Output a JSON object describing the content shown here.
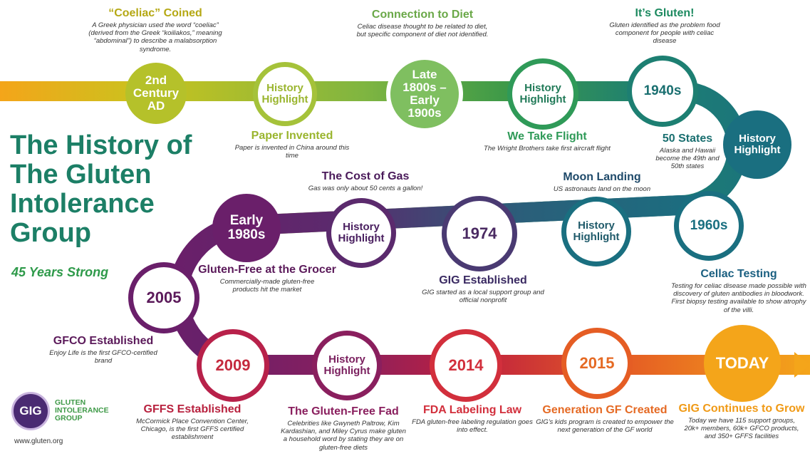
{
  "header": {
    "title": "The History of The Gluten Intolerance Group",
    "subtitle": "45 Years Strong"
  },
  "logo": {
    "monogram": "GIG",
    "text": "GLUTEN INTOLERANCE GROUP"
  },
  "website": "www.gluten.org",
  "colors": {
    "green_title": "#1c7f66",
    "orange": "#f4a51a",
    "lime": "#a5c23a",
    "green": "#3f9a48",
    "teal": "#1a6f80",
    "purple": "#5b2a6d",
    "magenta": "#7a1f6e",
    "red": "#d22f3c",
    "orange_red": "#e55d24"
  },
  "nodes": [
    {
      "label": "2nd Century AD"
    },
    {
      "label": "History Highlight"
    },
    {
      "label": "Late 1800s – Early 1900s"
    },
    {
      "label": "History Highlight"
    },
    {
      "label": "1940s"
    },
    {
      "label": "History Highlight"
    },
    {
      "label": "1960s"
    },
    {
      "label": "History Highlight"
    },
    {
      "label": "1974"
    },
    {
      "label": "History Highlight"
    },
    {
      "label": "Early 1980s"
    },
    {
      "label": "2005"
    },
    {
      "label": "2009"
    },
    {
      "label": "History Highlight"
    },
    {
      "label": "2014"
    },
    {
      "label": "2015"
    },
    {
      "label": "TODAY"
    }
  ],
  "events": [
    {
      "title": "“Coeliac” Coined",
      "desc": "A Greek physician used the word “coeliac” (derived from the Greek “koiliakos,” meaning “abdominal”) to describe a malabsorption syndrome."
    },
    {
      "title": "Paper Invented",
      "desc": "Paper is invented in China around this time"
    },
    {
      "title": "Connection to Diet",
      "desc": "Celiac disease thought to be related to diet, but specific component of diet not identified."
    },
    {
      "title": "We Take Flight",
      "desc": "The Wright Brothers take first aircraft flight"
    },
    {
      "title": "It’s Gluten!",
      "desc": "Gluten identified as the problem food component for people with celiac disease"
    },
    {
      "title": "50 States",
      "desc": "Alaska and Hawaii become the 49th and 50th states"
    },
    {
      "title": "Cellac Testing",
      "desc": "Testing for celiac disease made possible with discovery of gluten antibodies in bloodwork. First biopsy testing available to show atrophy of the villi."
    },
    {
      "title": "Moon Landing",
      "desc": "US astronauts land on the moon"
    },
    {
      "title": "GIG Established",
      "desc": "GIG started as a local support group and official nonprofit"
    },
    {
      "title": "The Cost of Gas",
      "desc": "Gas was only about 50 cents a gallon!"
    },
    {
      "title": "Gluten-Free at the Grocer",
      "desc": "Commercially-made gluten-free products hit the market"
    },
    {
      "title": "GFCO Established",
      "desc": "Enjoy Life is the first GFCO-certified brand"
    },
    {
      "title": "GFFS Established",
      "desc": "McCormick Place Convention Center, Chicago, is the first GFFS certified establishment"
    },
    {
      "title": "The Gluten-Free Fad",
      "desc": "Celebrities like Gwyneth Paltrow, Kim Kardashian, and Miley Cyrus make gluten a household word by stating they are on gluten-free diets"
    },
    {
      "title": "FDA Labeling Law",
      "desc": "FDA gluten-free labeling regulation goes into effect."
    },
    {
      "title": "Generation GF Created",
      "desc": "GIG’s kids program is created to empower the next generation of the GF world"
    },
    {
      "title": "GIG Continues to Grow",
      "desc": "Today we have 115 support groups, 20k+ members, 60k+ GFCO products, and 350+ GFFS facilities"
    }
  ]
}
